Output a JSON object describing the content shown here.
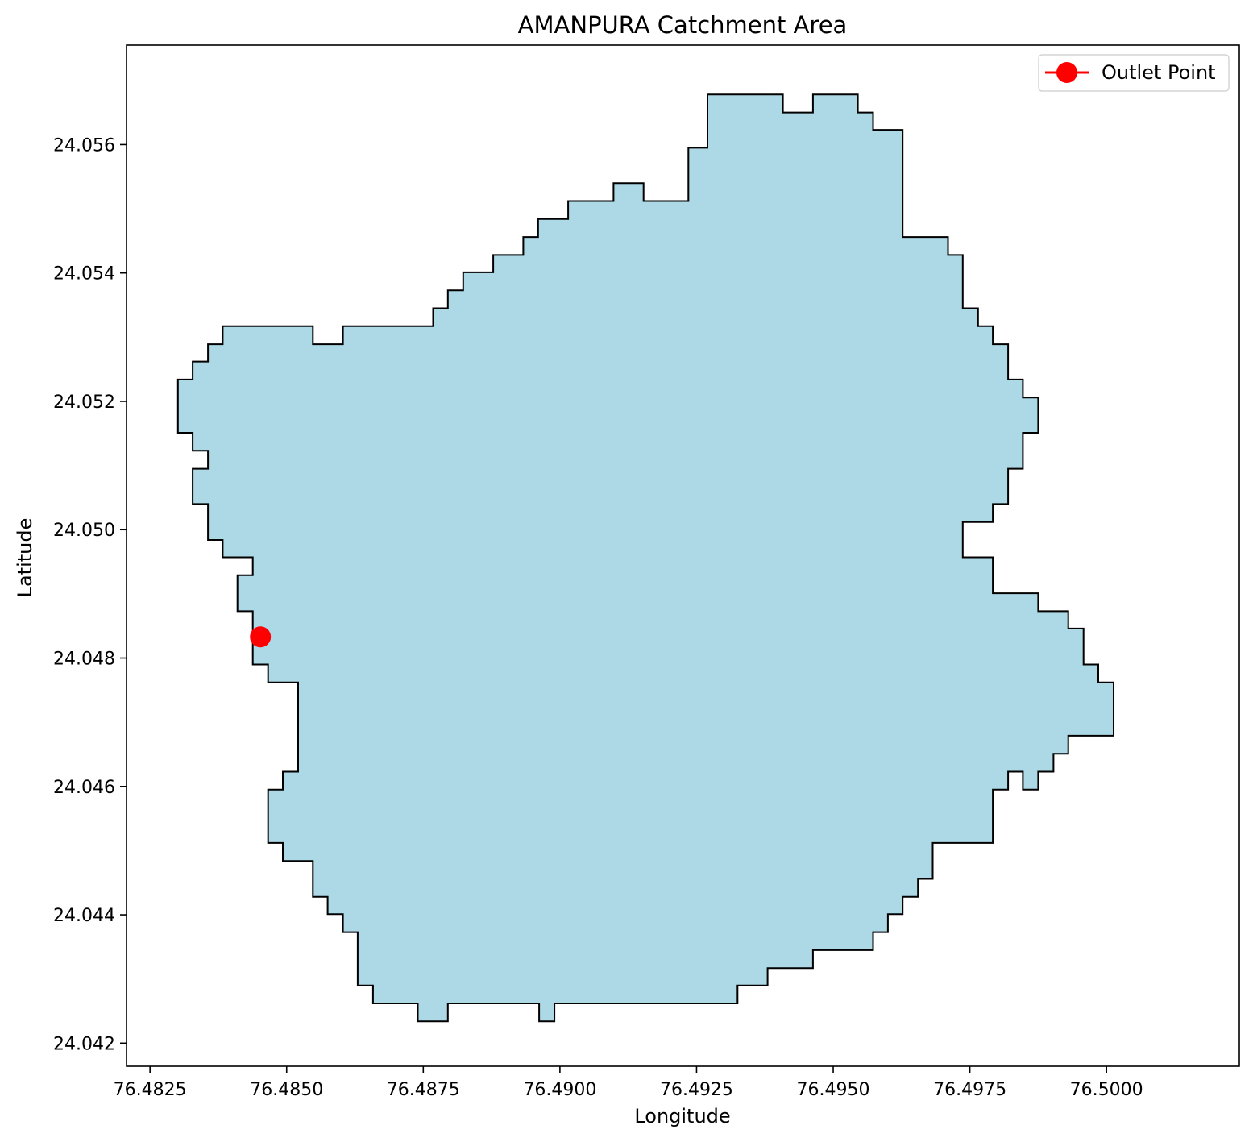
{
  "chart_data": {
    "type": "map",
    "title": "AMANPURA Catchment Area",
    "xlabel": "Longitude",
    "ylabel": "Latitude",
    "xlim": [
      76.48207,
      76.50243
    ],
    "ylim": [
      24.04164,
      24.05755
    ],
    "xticks": [
      76.4825,
      76.485,
      76.4875,
      76.49,
      76.4925,
      76.495,
      76.4975,
      76.5
    ],
    "xtick_labels": [
      "76.4825",
      "76.4850",
      "76.4875",
      "76.4900",
      "76.4925",
      "76.4950",
      "76.4975",
      "76.5000"
    ],
    "yticks": [
      24.042,
      24.044,
      24.046,
      24.048,
      24.05,
      24.052,
      24.054,
      24.056
    ],
    "ytick_labels": [
      "24.042",
      "24.044",
      "24.046",
      "24.048",
      "24.050",
      "24.052",
      "24.054",
      "24.056"
    ],
    "grid": false,
    "legend": {
      "position": "upper-right",
      "entries": [
        {
          "label": "Outlet Point",
          "color": "#ff0000",
          "marker": "circle"
        }
      ]
    },
    "catchment": {
      "fill": "#add8e6",
      "edge": "#000000",
      "boundary": [
        [
          76.4927,
          24.05678
        ],
        [
          76.49408,
          24.05678
        ],
        [
          76.49408,
          24.0565
        ],
        [
          76.49463,
          24.0565
        ],
        [
          76.49463,
          24.05678
        ],
        [
          76.49545,
          24.05678
        ],
        [
          76.49545,
          24.0565
        ],
        [
          76.49573,
          24.0565
        ],
        [
          76.49573,
          24.05623
        ],
        [
          76.49627,
          24.05623
        ],
        [
          76.49627,
          24.05456
        ],
        [
          76.4971,
          24.05456
        ],
        [
          76.4971,
          24.05428
        ],
        [
          76.49737,
          24.05428
        ],
        [
          76.49737,
          24.05345
        ],
        [
          76.49765,
          24.05345
        ],
        [
          76.49765,
          24.05317
        ],
        [
          76.49792,
          24.05317
        ],
        [
          76.49792,
          24.05289
        ],
        [
          76.4982,
          24.05289
        ],
        [
          76.4982,
          24.05234
        ],
        [
          76.49847,
          24.05234
        ],
        [
          76.49847,
          24.05206
        ],
        [
          76.49875,
          24.05206
        ],
        [
          76.49875,
          24.05151
        ],
        [
          76.49847,
          24.05151
        ],
        [
          76.49847,
          24.05095
        ],
        [
          76.4982,
          24.05095
        ],
        [
          76.4982,
          24.0504
        ],
        [
          76.49792,
          24.0504
        ],
        [
          76.49792,
          24.05012
        ],
        [
          76.49737,
          24.05012
        ],
        [
          76.49737,
          24.04957
        ],
        [
          76.49792,
          24.04957
        ],
        [
          76.49792,
          24.04901
        ],
        [
          76.49875,
          24.04901
        ],
        [
          76.49875,
          24.04873
        ],
        [
          76.4993,
          24.04873
        ],
        [
          76.4993,
          24.04846
        ],
        [
          76.49958,
          24.04846
        ],
        [
          76.49958,
          24.0479
        ],
        [
          76.49985,
          24.0479
        ],
        [
          76.49985,
          24.04762
        ],
        [
          76.50013,
          24.04762
        ],
        [
          76.50013,
          24.04679
        ],
        [
          76.4993,
          24.04679
        ],
        [
          76.4993,
          24.04651
        ],
        [
          76.49903,
          24.04651
        ],
        [
          76.49903,
          24.04623
        ],
        [
          76.49875,
          24.04623
        ],
        [
          76.49875,
          24.04595
        ],
        [
          76.49847,
          24.04595
        ],
        [
          76.49847,
          24.04623
        ],
        [
          76.4982,
          24.04623
        ],
        [
          76.4982,
          24.04595
        ],
        [
          76.49792,
          24.04595
        ],
        [
          76.49792,
          24.04512
        ],
        [
          76.49682,
          24.04512
        ],
        [
          76.49682,
          24.04456
        ],
        [
          76.49655,
          24.04456
        ],
        [
          76.49655,
          24.04428
        ],
        [
          76.49627,
          24.04428
        ],
        [
          76.49627,
          24.04401
        ],
        [
          76.496,
          24.04401
        ],
        [
          76.496,
          24.04373
        ],
        [
          76.49573,
          24.04373
        ],
        [
          76.49573,
          24.04345
        ],
        [
          76.49463,
          24.04345
        ],
        [
          76.49463,
          24.04317
        ],
        [
          76.4938,
          24.04317
        ],
        [
          76.4938,
          24.0429
        ],
        [
          76.49325,
          24.0429
        ],
        [
          76.49325,
          24.04262
        ],
        [
          76.4899,
          24.04262
        ],
        [
          76.4899,
          24.04234
        ],
        [
          76.48962,
          24.04234
        ],
        [
          76.48962,
          24.04262
        ],
        [
          76.48795,
          24.04262
        ],
        [
          76.48795,
          24.04234
        ],
        [
          76.4874,
          24.04234
        ],
        [
          76.4874,
          24.04262
        ],
        [
          76.48658,
          24.04262
        ],
        [
          76.48658,
          24.0429
        ],
        [
          76.4863,
          24.0429
        ],
        [
          76.4863,
          24.04373
        ],
        [
          76.48603,
          24.04373
        ],
        [
          76.48603,
          24.04401
        ],
        [
          76.48575,
          24.04401
        ],
        [
          76.48575,
          24.04428
        ],
        [
          76.48548,
          24.04428
        ],
        [
          76.48548,
          24.04484
        ],
        [
          76.48493,
          24.04484
        ],
        [
          76.48493,
          24.04512
        ],
        [
          76.48466,
          24.04512
        ],
        [
          76.48466,
          24.04595
        ],
        [
          76.48493,
          24.04595
        ],
        [
          76.48493,
          24.04623
        ],
        [
          76.48521,
          24.04623
        ],
        [
          76.48521,
          24.04762
        ],
        [
          76.48466,
          24.04762
        ],
        [
          76.48466,
          24.0479
        ],
        [
          76.48438,
          24.0479
        ],
        [
          76.48438,
          24.04873
        ],
        [
          76.4841,
          24.04873
        ],
        [
          76.4841,
          24.04929
        ],
        [
          76.48438,
          24.04929
        ],
        [
          76.48438,
          24.04957
        ],
        [
          76.48383,
          24.04957
        ],
        [
          76.48383,
          24.04984
        ],
        [
          76.48356,
          24.04984
        ],
        [
          76.48356,
          24.0504
        ],
        [
          76.48328,
          24.0504
        ],
        [
          76.48328,
          24.05095
        ],
        [
          76.48356,
          24.05095
        ],
        [
          76.48356,
          24.05123
        ],
        [
          76.48328,
          24.05123
        ],
        [
          76.48328,
          24.05151
        ],
        [
          76.48301,
          24.05151
        ],
        [
          76.48301,
          24.05234
        ],
        [
          76.48328,
          24.05234
        ],
        [
          76.48328,
          24.05262
        ],
        [
          76.48356,
          24.05262
        ],
        [
          76.48356,
          24.05289
        ],
        [
          76.48383,
          24.05289
        ],
        [
          76.48383,
          24.05317
        ],
        [
          76.48548,
          24.05317
        ],
        [
          76.48548,
          24.05289
        ],
        [
          76.48603,
          24.05289
        ],
        [
          76.48603,
          24.05317
        ],
        [
          76.48768,
          24.05317
        ],
        [
          76.48768,
          24.05345
        ],
        [
          76.48795,
          24.05345
        ],
        [
          76.48795,
          24.05373
        ],
        [
          76.48823,
          24.05373
        ],
        [
          76.48823,
          24.05401
        ],
        [
          76.48878,
          24.05401
        ],
        [
          76.48878,
          24.05428
        ],
        [
          76.48933,
          24.05428
        ],
        [
          76.48933,
          24.05456
        ],
        [
          76.4896,
          24.05456
        ],
        [
          76.4896,
          24.05484
        ],
        [
          76.49015,
          24.05484
        ],
        [
          76.49015,
          24.05512
        ],
        [
          76.49098,
          24.05512
        ],
        [
          76.49098,
          24.0554
        ],
        [
          76.49153,
          24.0554
        ],
        [
          76.49153,
          24.05512
        ],
        [
          76.49235,
          24.05512
        ],
        [
          76.49235,
          24.05595
        ],
        [
          76.4927,
          24.05595
        ]
      ]
    },
    "outlet": {
      "label": "Outlet Point",
      "lon": 76.48452,
      "lat": 24.04833,
      "color": "#ff0000"
    }
  }
}
